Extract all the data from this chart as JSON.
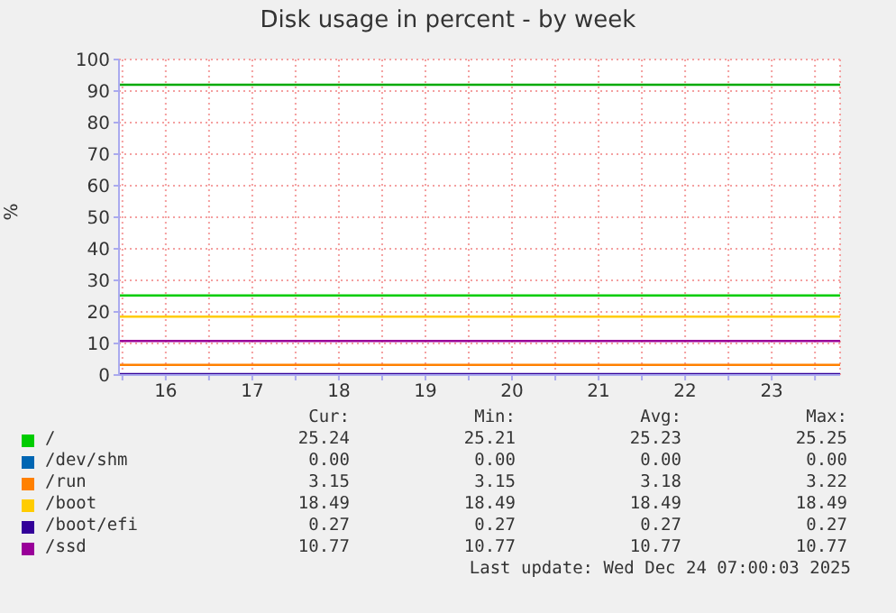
{
  "chart_data": {
    "type": "line",
    "title": "Disk usage in percent - by week",
    "ylabel": "%",
    "x": [
      15.96,
      24.29
    ],
    "series": [
      {
        "name": "/",
        "color": "#00cc00",
        "values": [
          25.2,
          25.2
        ]
      },
      {
        "name": "/dev/shm",
        "color": "#0066b3",
        "values": [
          null,
          null
        ]
      },
      {
        "name": "/run",
        "color": "#ff8000",
        "values": [
          3.2,
          3.2
        ]
      },
      {
        "name": "/boot",
        "color": "#ffcc00",
        "values": [
          18.5,
          18.5
        ]
      },
      {
        "name": "/boot/efi",
        "color": "#330099",
        "values": [
          0.3,
          0.3
        ]
      },
      {
        "name": "/ssd",
        "color": "#990099",
        "values": [
          10.8,
          10.8
        ]
      }
    ],
    "xlim": [
      15.96,
      24.29
    ],
    "xticks": [
      {
        "value": 16,
        "label": null
      },
      {
        "value": 16.5,
        "label": "16"
      },
      {
        "value": 17,
        "label": null
      },
      {
        "value": 17.5,
        "label": "17"
      },
      {
        "value": 18,
        "label": null
      },
      {
        "value": 18.5,
        "label": "18"
      },
      {
        "value": 19,
        "label": null
      },
      {
        "value": 19.5,
        "label": "19"
      },
      {
        "value": 20,
        "label": null
      },
      {
        "value": 20.5,
        "label": "20"
      },
      {
        "value": 21,
        "label": null
      },
      {
        "value": 21.5,
        "label": "21"
      },
      {
        "value": 22,
        "label": null
      },
      {
        "value": 22.5,
        "label": "22"
      },
      {
        "value": 23,
        "label": null
      },
      {
        "value": 23.5,
        "label": "23"
      },
      {
        "value": 24,
        "label": null
      }
    ],
    "ylim": [
      0,
      100
    ],
    "yticks": [
      0,
      10,
      20,
      30,
      40,
      50,
      60,
      70,
      80,
      90,
      100
    ],
    "ref_lines": [
      {
        "axis": "y",
        "value": 92,
        "color": "#00aa00"
      }
    ],
    "grid": true,
    "legend": "bottom",
    "marker": "none",
    "line_style": "solid",
    "annotations": [
      "Cur:",
      "Min:",
      "Avg:",
      "Max:",
      "25.24",
      "25.21",
      "25.23",
      "25.25",
      "0.00",
      "0.00",
      "0.00",
      "0.00",
      "3.15",
      "3.15",
      "3.18",
      "3.22",
      "18.49",
      "18.49",
      "18.49",
      "18.49",
      "0.27",
      "0.27",
      "0.27",
      "0.27",
      "10.77",
      "10.77",
      "10.77",
      "10.77",
      "Last update: Wed Dec 24 07:00:03 2025"
    ]
  }
}
